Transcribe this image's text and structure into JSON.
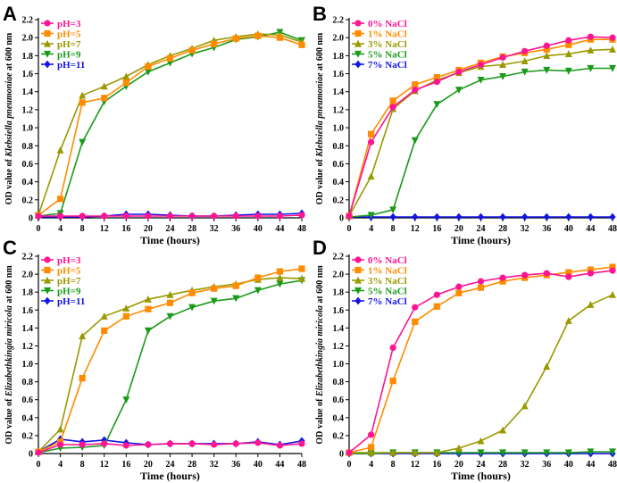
{
  "chart_data": [
    {
      "type": "line",
      "panel": "A",
      "xlabel": "Time (hours)",
      "ylabel_prefix": "OD value of ",
      "ylabel_species": "Klebsiella pneumoniae",
      "ylabel_suffix": " at 600 nm",
      "ylim": [
        0,
        2.2
      ],
      "xlim": [
        0,
        48
      ],
      "x": [
        0,
        4,
        8,
        12,
        16,
        20,
        24,
        28,
        32,
        36,
        40,
        44,
        48
      ],
      "series": [
        {
          "name": "pH=3",
          "color": "#ff1493",
          "marker": "circle",
          "values": [
            0.02,
            0.02,
            0.02,
            0.02,
            0.02,
            0.02,
            0.02,
            0.02,
            0.02,
            0.02,
            0.02,
            0.02,
            0.03
          ]
        },
        {
          "name": "pH=5",
          "color": "#ff8c00",
          "marker": "square",
          "values": [
            0.03,
            0.21,
            1.28,
            1.33,
            1.5,
            1.68,
            1.77,
            1.86,
            1.93,
            1.99,
            2.02,
            2.0,
            1.92
          ]
        },
        {
          "name": "pH=7",
          "color": "#999900",
          "marker": "triangle",
          "values": [
            0.03,
            0.75,
            1.36,
            1.46,
            1.57,
            1.7,
            1.8,
            1.88,
            1.97,
            2.01,
            2.04,
            2.03,
            1.95
          ]
        },
        {
          "name": "pH=9",
          "color": "#1a9a1a",
          "marker": "tridown",
          "values": [
            0.02,
            0.05,
            0.84,
            1.29,
            1.46,
            1.62,
            1.72,
            1.82,
            1.89,
            1.98,
            2.01,
            2.06,
            1.97
          ]
        },
        {
          "name": "pH=11",
          "color": "#1414e6",
          "marker": "diamond",
          "values": [
            0.01,
            0.01,
            0.01,
            0.02,
            0.04,
            0.04,
            0.03,
            0.02,
            0.02,
            0.03,
            0.04,
            0.04,
            0.05
          ]
        }
      ],
      "legend": "top-left"
    },
    {
      "type": "line",
      "panel": "B",
      "xlabel": "Time (hours)",
      "ylabel_prefix": "OD value of ",
      "ylabel_species": "Klebsiella pneumoniae",
      "ylabel_suffix": " at 600 nm",
      "ylim": [
        0,
        2.2
      ],
      "xlim": [
        0,
        48
      ],
      "x": [
        0,
        4,
        8,
        12,
        16,
        20,
        24,
        28,
        32,
        36,
        40,
        44,
        48
      ],
      "series": [
        {
          "name": "0% NaCl",
          "color": "#ff1493",
          "marker": "circle",
          "values": [
            0.02,
            0.84,
            1.23,
            1.42,
            1.51,
            1.62,
            1.7,
            1.78,
            1.85,
            1.91,
            1.97,
            2.01,
            2.0
          ]
        },
        {
          "name": "1% NaCl",
          "color": "#ff8c00",
          "marker": "square",
          "values": [
            0.02,
            0.93,
            1.3,
            1.48,
            1.56,
            1.64,
            1.72,
            1.79,
            1.83,
            1.87,
            1.92,
            1.98,
            1.98
          ]
        },
        {
          "name": "3% NaCl",
          "color": "#999900",
          "marker": "triangle",
          "values": [
            0.02,
            0.46,
            1.21,
            1.41,
            1.53,
            1.61,
            1.68,
            1.7,
            1.74,
            1.8,
            1.82,
            1.86,
            1.87
          ]
        },
        {
          "name": "5% NaCl",
          "color": "#1a9a1a",
          "marker": "tridown",
          "values": [
            0.01,
            0.03,
            0.09,
            0.86,
            1.26,
            1.42,
            1.53,
            1.57,
            1.62,
            1.64,
            1.63,
            1.66,
            1.66
          ]
        },
        {
          "name": "7% NaCl",
          "color": "#1414e6",
          "marker": "diamond",
          "values": [
            0.01,
            0.01,
            0.01,
            0.01,
            0.01,
            0.01,
            0.01,
            0.01,
            0.01,
            0.01,
            0.01,
            0.01,
            0.01
          ]
        }
      ],
      "legend": "top-left"
    },
    {
      "type": "line",
      "panel": "C",
      "xlabel": "Time (hours)",
      "ylabel_prefix": "OD value of ",
      "ylabel_species": "Elizabethkingia miricola",
      "ylabel_suffix": " at 600 nm",
      "ylim": [
        0,
        2.2
      ],
      "xlim": [
        0,
        48
      ],
      "x": [
        0,
        4,
        8,
        12,
        16,
        20,
        24,
        28,
        32,
        36,
        40,
        44,
        48
      ],
      "series": [
        {
          "name": "pH=3",
          "color": "#ff1493",
          "marker": "circle",
          "values": [
            0.01,
            0.1,
            0.1,
            0.11,
            0.09,
            0.1,
            0.11,
            0.11,
            0.1,
            0.11,
            0.12,
            0.09,
            0.11
          ]
        },
        {
          "name": "pH=5",
          "color": "#ff8c00",
          "marker": "square",
          "values": [
            0.02,
            0.13,
            0.84,
            1.37,
            1.53,
            1.61,
            1.68,
            1.79,
            1.84,
            1.87,
            1.96,
            2.03,
            2.06
          ]
        },
        {
          "name": "pH=7",
          "color": "#999900",
          "marker": "triangle",
          "values": [
            0.02,
            0.27,
            1.31,
            1.53,
            1.62,
            1.72,
            1.77,
            1.82,
            1.86,
            1.89,
            1.94,
            1.96,
            1.95
          ]
        },
        {
          "name": "pH=9",
          "color": "#1a9a1a",
          "marker": "tridown",
          "values": [
            0.01,
            0.06,
            0.07,
            0.09,
            0.6,
            1.37,
            1.53,
            1.63,
            1.7,
            1.73,
            1.82,
            1.89,
            1.93
          ]
        },
        {
          "name": "pH=11",
          "color": "#1414e6",
          "marker": "diamond",
          "values": [
            0.02,
            0.16,
            0.13,
            0.15,
            0.12,
            0.1,
            0.11,
            0.11,
            0.11,
            0.11,
            0.13,
            0.1,
            0.14
          ]
        }
      ],
      "legend": "top-left"
    },
    {
      "type": "line",
      "panel": "D",
      "xlabel": "Time (hours)",
      "ylabel_prefix": "OD value of ",
      "ylabel_species": "Elizabethkingia miricola",
      "ylabel_suffix": " at 600 nm",
      "ylim": [
        0,
        2.2
      ],
      "xlim": [
        0,
        48
      ],
      "x": [
        0,
        4,
        8,
        12,
        16,
        20,
        24,
        28,
        32,
        36,
        40,
        44,
        48
      ],
      "series": [
        {
          "name": "0% NaCl",
          "color": "#ff1493",
          "marker": "circle",
          "values": [
            0.01,
            0.21,
            1.18,
            1.63,
            1.77,
            1.86,
            1.92,
            1.96,
            1.99,
            2.01,
            1.97,
            2.01,
            2.04
          ]
        },
        {
          "name": "1% NaCl",
          "color": "#ff8c00",
          "marker": "square",
          "values": [
            0.01,
            0.07,
            0.81,
            1.47,
            1.64,
            1.79,
            1.85,
            1.92,
            1.96,
            1.99,
            2.02,
            2.05,
            2.08
          ]
        },
        {
          "name": "3% NaCl",
          "color": "#999900",
          "marker": "triangle",
          "values": [
            0.01,
            0.01,
            0.01,
            0.01,
            0.01,
            0.06,
            0.14,
            0.26,
            0.53,
            0.97,
            1.48,
            1.66,
            1.77
          ]
        },
        {
          "name": "5% NaCl",
          "color": "#1a9a1a",
          "marker": "tridown",
          "values": [
            0.0,
            0.0,
            0.01,
            0.01,
            0.01,
            0.01,
            0.01,
            0.01,
            0.01,
            0.01,
            0.01,
            0.02,
            0.02
          ]
        },
        {
          "name": "7% NaCl",
          "color": "#1414e6",
          "marker": "diamond",
          "values": [
            0.0,
            0.0,
            0.0,
            0.0,
            0.0,
            0.0,
            0.0,
            0.0,
            0.0,
            0.0,
            0.0,
            0.0,
            0.0
          ]
        }
      ],
      "legend": "top-left"
    }
  ]
}
